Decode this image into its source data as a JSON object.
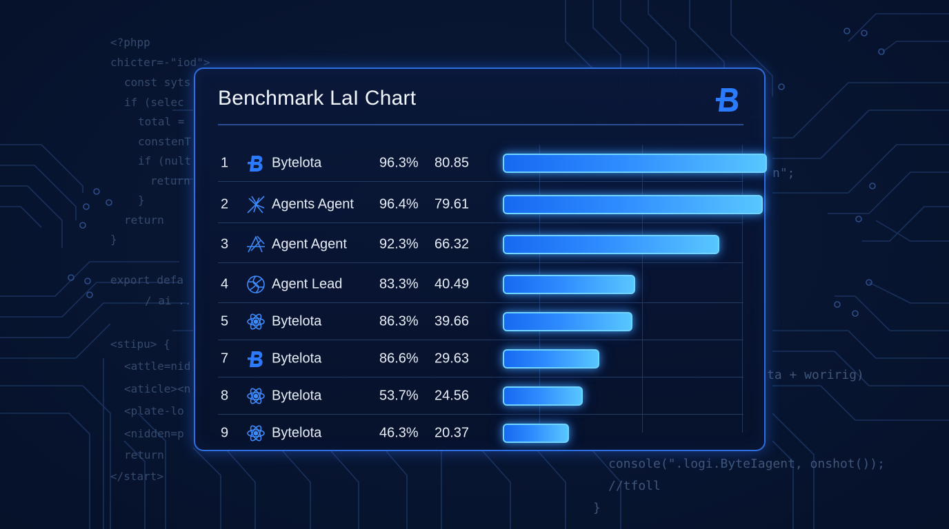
{
  "background_code": {
    "left": [
      "<?phpp",
      "chicter=-\"iod\">",
      "const syts",
      "if (selec",
      "total =",
      "constenT",
      "if (nult",
      "return",
      "}",
      "return",
      "}",
      "export defa",
      "/ ai ..",
      "<stipu> {",
      "<attle=nid",
      "<aticle><n",
      "<plate-lo",
      "<nidden=p",
      "return",
      "</start>"
    ],
    "right": [
      "n\";",
      "ta + woririg)",
      "console(\".logi.ByteIagent, onshot());",
      "//tfoll",
      "}"
    ]
  },
  "panel": {
    "title": "Benchmark LaI Chart"
  },
  "icons": {
    "brand": "bytelota-b-logo-icon"
  },
  "colors": {
    "background": "#071430",
    "panel_border": "#2f6fe0",
    "bar_start": "#1669f0",
    "bar_end": "#58c6ff",
    "bar_glow": "#6fd4ff",
    "text": "#e9eefb"
  },
  "chart_data": {
    "type": "bar",
    "orientation": "horizontal",
    "title": "Benchmark LaI Chart",
    "grid": true,
    "rows": [
      {
        "rank": "1",
        "name": "Bytelota",
        "icon": "bytelota-b-icon",
        "pct": "96.3%",
        "score": "80.85",
        "value": 80.85
      },
      {
        "rank": "2",
        "name": "Agents Agent",
        "icon": "agents-agent-icon",
        "pct": "96.4%",
        "score": "79.61",
        "value": 79.61
      },
      {
        "rank": "3",
        "name": "Agent Agent",
        "icon": "agent-agent-icon",
        "pct": "92.3%",
        "score": "66.32",
        "value": 66.32
      },
      {
        "rank": "4",
        "name": "Agent Lead",
        "icon": "agent-lead-knot-icon",
        "pct": "83.3%",
        "score": "40.49",
        "value": 40.49
      },
      {
        "rank": "5",
        "name": "Bytelota",
        "icon": "atom-icon",
        "pct": "86.3%",
        "score": "39.66",
        "value": 39.66
      },
      {
        "rank": "7",
        "name": "Bytelota",
        "icon": "bytelota-b-icon",
        "pct": "86.6%",
        "score": "29.63",
        "value": 29.63
      },
      {
        "rank": "8",
        "name": "Bytelota",
        "icon": "atom-icon",
        "pct": "53.7%",
        "score": "24.56",
        "value": 24.56
      },
      {
        "rank": "9",
        "name": "Bytelota",
        "icon": "atom-icon",
        "pct": "46.3%",
        "score": "20.37",
        "value": 20.37
      }
    ]
  }
}
